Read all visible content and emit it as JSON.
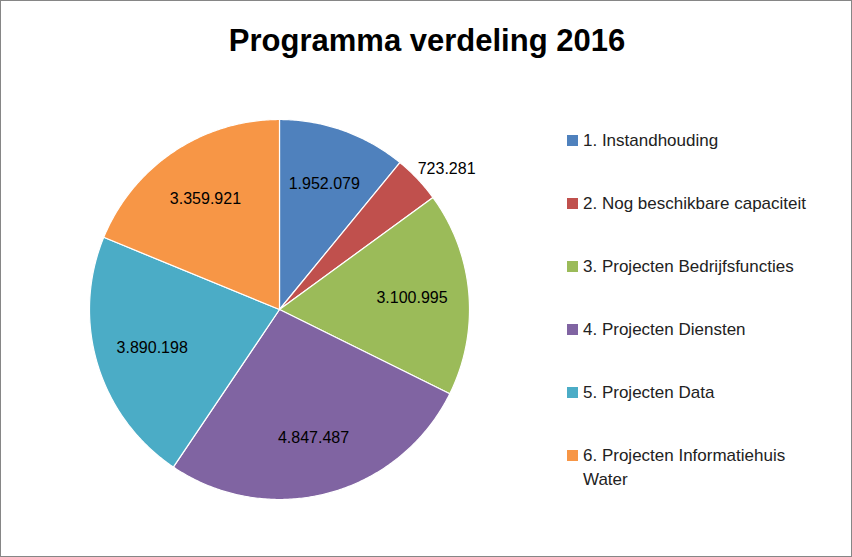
{
  "chart_data": {
    "type": "pie",
    "title": "Programma verdeling 2016",
    "categories": [
      "1. Instandhouding",
      "2. Nog beschikbare capaciteit",
      "3. Projecten Bedrijfsfuncties",
      "4. Projecten Diensten",
      "5. Projecten Data",
      "6. Projecten Informatiehuis Water"
    ],
    "values": [
      1952079,
      723281,
      3100995,
      4847487,
      3890198,
      3359921
    ],
    "value_labels": [
      "1.952.079",
      "723.281",
      "3.100.995",
      "4.847.487",
      "3.890.198",
      "3.359.921"
    ],
    "colors": [
      "#4f81bd",
      "#c0504d",
      "#9bbb59",
      "#8064a2",
      "#4bacc6",
      "#f79646"
    ],
    "data_labels": true,
    "legend": "right"
  }
}
